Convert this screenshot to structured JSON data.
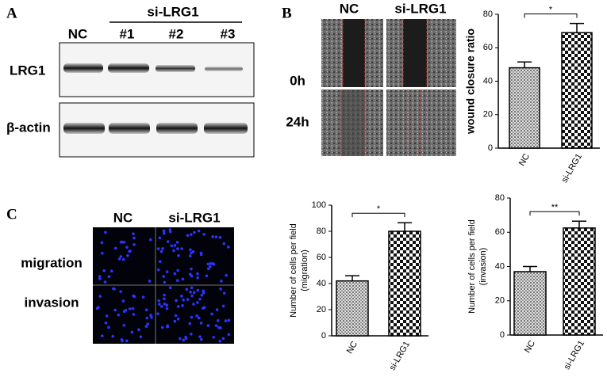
{
  "panels": {
    "A": {
      "label": "A",
      "header": "si-LRG1",
      "lanes": [
        "NC",
        "#1",
        "#2",
        "#3"
      ],
      "rows": [
        "LRG1",
        "β-actin"
      ]
    },
    "B": {
      "label": "B",
      "columns": [
        "NC",
        "si-LRG1"
      ],
      "rows": [
        "0h",
        "24h"
      ]
    },
    "C": {
      "label": "C",
      "columns": [
        "NC",
        "si-LRG1"
      ],
      "rows": [
        "migration",
        "invasion"
      ]
    }
  },
  "chart_data": [
    {
      "type": "bar",
      "ylabel": [
        "wound closure ratio"
      ],
      "categories": [
        "NC",
        "si-LRG1"
      ],
      "values": [
        48,
        69
      ],
      "errors": [
        3.5,
        5.5
      ],
      "ylim": [
        0,
        80
      ],
      "yticks": [
        0,
        20,
        40,
        60,
        80
      ],
      "annotation": "*"
    },
    {
      "type": "bar",
      "ylabel": [
        "Number of cells per field",
        "(migration)"
      ],
      "categories": [
        "NC",
        "si-LRG1"
      ],
      "values": [
        42,
        80
      ],
      "errors": [
        4,
        6.5
      ],
      "ylim": [
        0,
        100
      ],
      "yticks": [
        0,
        20,
        40,
        60,
        80,
        100
      ],
      "annotation": "*"
    },
    {
      "type": "bar",
      "ylabel": [
        "Number of cells per field",
        "(invasion)"
      ],
      "categories": [
        "NC",
        "si-LRG1"
      ],
      "values": [
        37,
        62.5
      ],
      "errors": [
        3,
        4
      ],
      "ylim": [
        0,
        80
      ],
      "yticks": [
        0,
        20,
        40,
        60,
        80
      ],
      "annotation": "**"
    }
  ]
}
